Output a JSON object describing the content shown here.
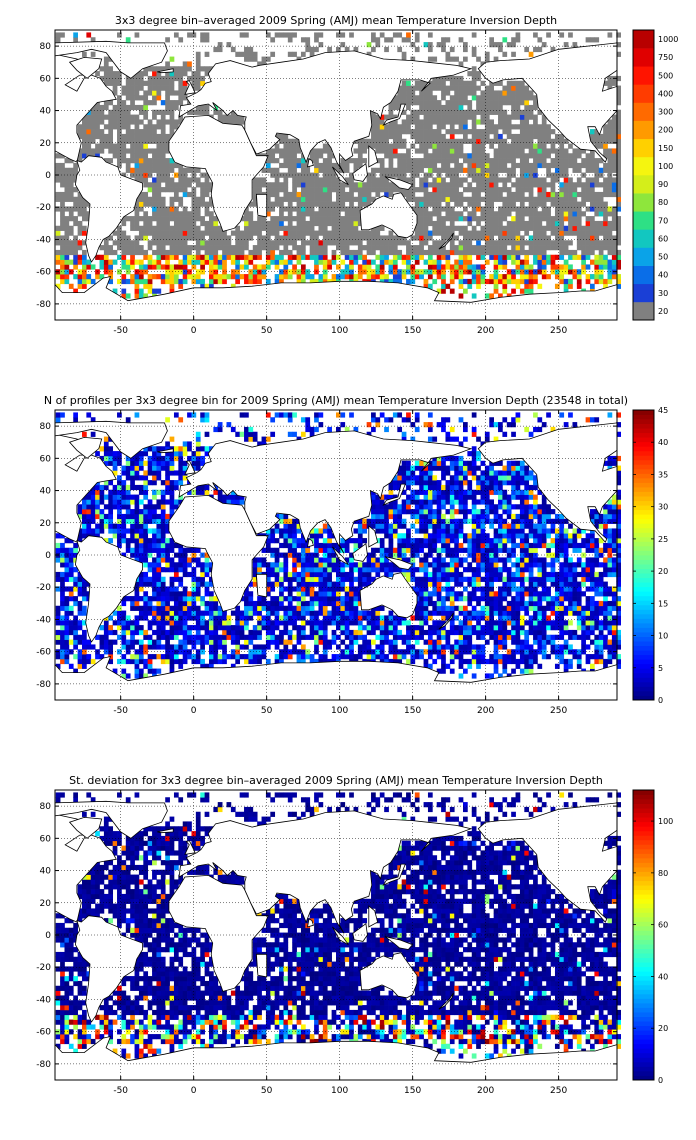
{
  "chart_data": [
    {
      "type": "heatmap",
      "title": "3x3 degree bin–averaged 2009 Spring (AMJ) mean Temperature Inversion Depth",
      "xlabel": "",
      "ylabel": "",
      "xlim": [
        -95,
        290
      ],
      "ylim": [
        -90,
        90
      ],
      "xticks": [
        -50,
        0,
        50,
        100,
        150,
        200,
        250
      ],
      "yticks": [
        -80,
        -60,
        -40,
        -20,
        0,
        20,
        40,
        60,
        80
      ],
      "grid": true,
      "colorbar": {
        "scale": "categorical",
        "ticks": [
          "20",
          "30",
          "40",
          "50",
          "60",
          "70",
          "80",
          "90",
          "100",
          "150",
          "200",
          "300",
          "400",
          "500",
          "750",
          "1000"
        ],
        "colors": [
          "#808080",
          "#1a3fd6",
          "#0a6ee8",
          "#0aa3e8",
          "#12c7c0",
          "#2ee085",
          "#8ee63c",
          "#d4ee1a",
          "#f5f50f",
          "#ffd000",
          "#ff9a00",
          "#ff6a00",
          "#ff3c00",
          "#ff1400",
          "#e00000",
          "#b80000"
        ]
      }
    },
    {
      "type": "heatmap",
      "title": "N of profiles per 3x3 degree bin for 2009 Spring (AMJ) mean Temperature Inversion Depth  (23548 in total)",
      "xlabel": "",
      "ylabel": "",
      "xlim": [
        -95,
        290
      ],
      "ylim": [
        -90,
        90
      ],
      "xticks": [
        -50,
        0,
        50,
        100,
        150,
        200,
        250
      ],
      "yticks": [
        -80,
        -60,
        -40,
        -20,
        0,
        20,
        40,
        60,
        80
      ],
      "grid": true,
      "colorbar": {
        "scale": "jet",
        "min": 0,
        "max": 45,
        "ticks": [
          0,
          5,
          10,
          15,
          20,
          25,
          30,
          35,
          40,
          45
        ]
      }
    },
    {
      "type": "heatmap",
      "title": "St. deviation for 3x3 degree bin–averaged 2009 Spring (AMJ) mean Temperature Inversion Depth",
      "xlabel": "",
      "ylabel": "",
      "xlim": [
        -95,
        290
      ],
      "ylim": [
        -90,
        90
      ],
      "xticks": [
        -50,
        0,
        50,
        100,
        150,
        200,
        250
      ],
      "yticks": [
        -80,
        -60,
        -40,
        -20,
        0,
        20,
        40,
        60,
        80
      ],
      "grid": true,
      "colorbar": {
        "scale": "jet",
        "min": 0,
        "max": 112,
        "ticks": [
          0,
          20,
          40,
          60,
          80,
          100
        ]
      }
    }
  ]
}
